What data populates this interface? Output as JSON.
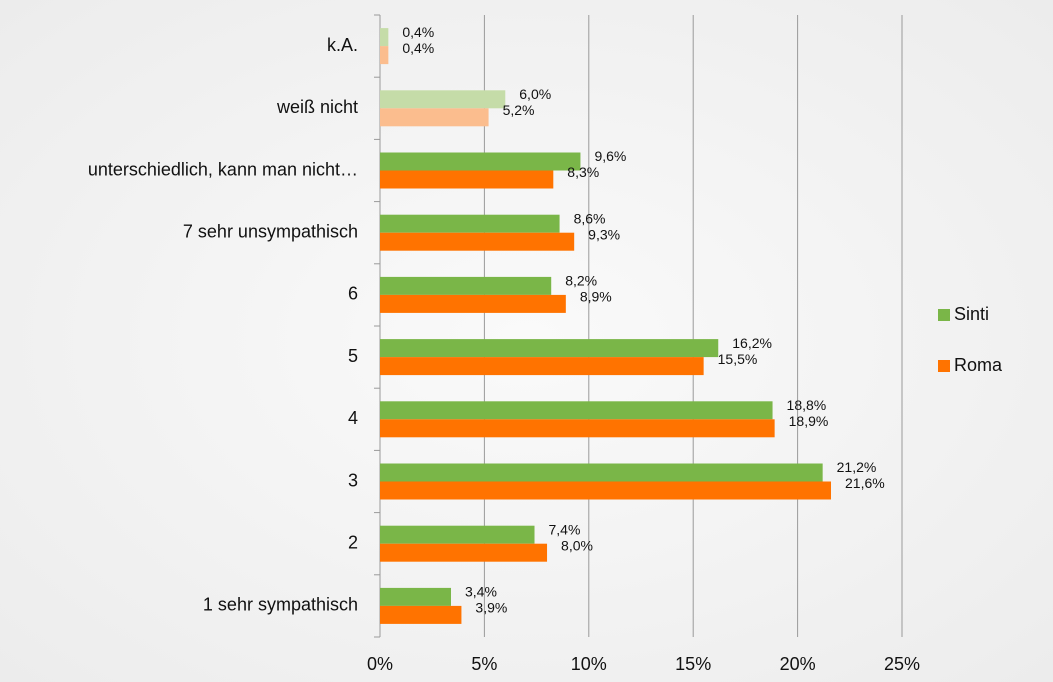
{
  "chart_data": {
    "type": "hbar",
    "categories": [
      "k.A.",
      "weiß nicht",
      "unterschiedlich, kann man nicht…",
      "7 sehr unsympathisch",
      "6",
      "5",
      "4",
      "3",
      "2",
      "1 sehr sympathisch"
    ],
    "series": [
      {
        "name": "Sinti",
        "color": "#7ab648",
        "colors": [
          "#c5dca8",
          "#c5dca8",
          "#7ab648",
          "#7ab648",
          "#7ab648",
          "#7ab648",
          "#7ab648",
          "#7ab648",
          "#7ab648",
          "#7ab648"
        ],
        "values": [
          0.4,
          6.0,
          9.6,
          8.6,
          8.2,
          16.2,
          18.8,
          21.2,
          7.4,
          3.4
        ],
        "value_labels": [
          "0,4%",
          "6,0%",
          "9,6%",
          "8,6%",
          "8,2%",
          "16,2%",
          "18,8%",
          "21,2%",
          "7,4%",
          "3,4%"
        ]
      },
      {
        "name": "Roma",
        "color": "#ff7300",
        "colors": [
          "#fbbd8e",
          "#fbbd8e",
          "#ff7300",
          "#ff7300",
          "#ff7300",
          "#ff7300",
          "#ff7300",
          "#ff7300",
          "#ff7300",
          "#ff7300"
        ],
        "values": [
          0.4,
          5.2,
          8.3,
          9.3,
          8.9,
          15.5,
          18.9,
          21.6,
          8.0,
          3.9
        ],
        "value_labels": [
          "0,4%",
          "5,2%",
          "8,3%",
          "9,3%",
          "8,9%",
          "15,5%",
          "18,9%",
          "21,6%",
          "8,0%",
          "3,9%"
        ]
      }
    ],
    "xlim": [
      0,
      25
    ],
    "xticks": [
      {
        "value": 0,
        "label": "0%"
      },
      {
        "value": 5,
        "label": "5%"
      },
      {
        "value": 10,
        "label": "10%"
      },
      {
        "value": 15,
        "label": "15%"
      },
      {
        "value": 20,
        "label": "20%"
      },
      {
        "value": 25,
        "label": "25%"
      }
    ],
    "grid": true,
    "legend": "right"
  }
}
